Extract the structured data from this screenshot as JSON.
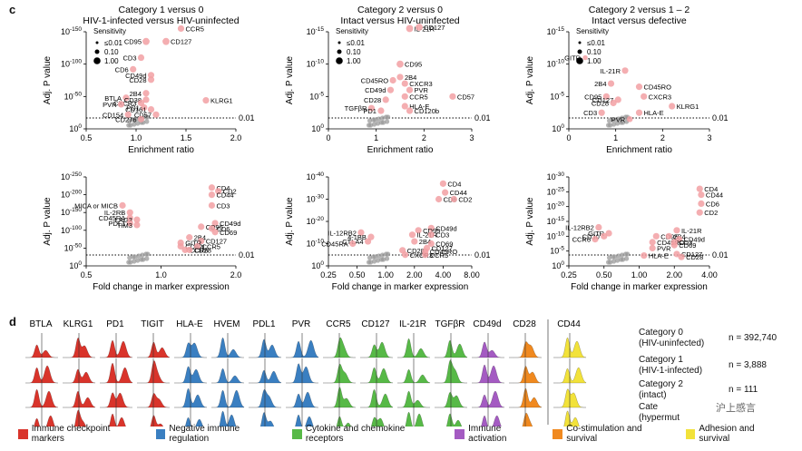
{
  "panel_c": "c",
  "panel_d": "d",
  "chart_data": [
    {
      "type": "scatter",
      "title": "Category 1 versus 0",
      "subtitle": "HIV-1-infected versus HIV-uninfected",
      "xlabel": "Enrichment ratio",
      "ylabel": "Adj. P value",
      "xlim": [
        0.5,
        2.0
      ],
      "xticks": [
        "0.5",
        "1.0",
        "1.5",
        "2.0"
      ],
      "ylim_exp": [
        0,
        150
      ],
      "yticks": [
        "10^0",
        "10^-50",
        "10^-100",
        "10^-150"
      ],
      "threshold_label": "0.01",
      "legend_title": "Sensitivity",
      "legend_items": [
        "≤0.01",
        "0.10",
        "1.00"
      ],
      "points": [
        {
          "label": "CCR5",
          "x": 1.45,
          "y": 155,
          "s": 0.6
        },
        {
          "label": "CD95",
          "x": 1.1,
          "y": 135,
          "s": 0.7
        },
        {
          "label": "CD127",
          "x": 1.3,
          "y": 135,
          "s": 0.7
        },
        {
          "label": "CD3",
          "x": 1.05,
          "y": 110,
          "s": 0.6
        },
        {
          "label": "CD6",
          "x": 0.97,
          "y": 92,
          "s": 0.6
        },
        {
          "label": "CD49d",
          "x": 1.15,
          "y": 83,
          "s": 0.6
        },
        {
          "label": "CD28",
          "x": 1.15,
          "y": 76,
          "s": 0.6
        },
        {
          "label": "2B4",
          "x": 1.1,
          "y": 55,
          "s": 0.6
        },
        {
          "label": "BTLA",
          "x": 0.9,
          "y": 48,
          "s": 0.6
        },
        {
          "label": "CD38",
          "x": 1.1,
          "y": 45,
          "s": 0.6
        },
        {
          "label": "CXCR3",
          "x": 1.05,
          "y": 40,
          "s": 0.6
        },
        {
          "label": "PVR",
          "x": 0.85,
          "y": 38,
          "s": 0.6
        },
        {
          "label": "PD1",
          "x": 1.08,
          "y": 33,
          "s": 0.6
        },
        {
          "label": "CD161",
          "x": 1.15,
          "y": 30,
          "s": 0.6
        },
        {
          "label": "CD154",
          "x": 0.92,
          "y": 22,
          "s": 0.6
        },
        {
          "label": "CD57",
          "x": 1.2,
          "y": 22,
          "s": 0.6
        },
        {
          "label": "CD276",
          "x": 1.05,
          "y": 15,
          "s": 0.6
        },
        {
          "label": "KLRG1",
          "x": 1.7,
          "y": 44,
          "s": 0.6
        }
      ]
    },
    {
      "type": "scatter",
      "title": "Category 2 versus 0",
      "subtitle": "Intact versus HIV-uninfected",
      "xlabel": "Enrichment ratio",
      "ylabel": "Adj. P value",
      "xlim": [
        0,
        3
      ],
      "xticks": [
        "0",
        "1",
        "2",
        "3"
      ],
      "ylim_exp": [
        0,
        15
      ],
      "yticks": [
        "10^0",
        "10^-5",
        "10^-10",
        "10^-15"
      ],
      "threshold_label": "0.01",
      "legend_title": "Sensitivity",
      "legend_items": [
        "≤0.01",
        "0.10",
        "1.00"
      ],
      "points": [
        {
          "label": "IL-21R",
          "x": 1.7,
          "y": 15.5,
          "s": 0.7
        },
        {
          "label": "CD127",
          "x": 1.9,
          "y": 15.7,
          "s": 0.7
        },
        {
          "label": "CD95",
          "x": 1.5,
          "y": 10,
          "s": 0.7
        },
        {
          "label": "2B4",
          "x": 1.5,
          "y": 8,
          "s": 0.6
        },
        {
          "label": "CD45RO",
          "x": 1.35,
          "y": 7.5,
          "s": 0.6
        },
        {
          "label": "CXCR3",
          "x": 1.6,
          "y": 7,
          "s": 0.6
        },
        {
          "label": "CD49d",
          "x": 1.3,
          "y": 6,
          "s": 0.6
        },
        {
          "label": "PVR",
          "x": 1.7,
          "y": 6,
          "s": 0.6
        },
        {
          "label": "CD28",
          "x": 1.2,
          "y": 4.5,
          "s": 0.6
        },
        {
          "label": "CCR5",
          "x": 1.6,
          "y": 5,
          "s": 0.6
        },
        {
          "label": "CD57",
          "x": 2.6,
          "y": 5,
          "s": 0.6
        },
        {
          "label": "TGFβR",
          "x": 0.9,
          "y": 3.2,
          "s": 0.6
        },
        {
          "label": "HLA-E",
          "x": 1.6,
          "y": 3.5,
          "s": 0.6
        },
        {
          "label": "PD1",
          "x": 1.1,
          "y": 2.8,
          "s": 0.6
        },
        {
          "label": "CD120b",
          "x": 1.7,
          "y": 2.8,
          "s": 0.6
        }
      ]
    },
    {
      "type": "scatter",
      "title": "Category 2 versus 1 – 2",
      "subtitle": "Intact versus defective",
      "xlabel": "Enrichment ratio",
      "ylabel": "Adj. P value",
      "xlim": [
        0,
        3
      ],
      "xticks": [
        "0",
        "1",
        "2",
        "3"
      ],
      "ylim_exp": [
        0,
        15
      ],
      "yticks": [
        "10^0",
        "10^-5",
        "10^-10",
        "10^-15"
      ],
      "threshold_label": "0.01",
      "legend_title": "Sensitivity",
      "legend_items": [
        "≤0.01",
        "0.10",
        "1.00"
      ],
      "points": [
        {
          "label": "GITR",
          "x": 0.35,
          "y": 11,
          "s": 0.3
        },
        {
          "label": "IL-21R",
          "x": 1.2,
          "y": 9,
          "s": 0.6
        },
        {
          "label": "2B4",
          "x": 0.9,
          "y": 7,
          "s": 0.6
        },
        {
          "label": "CD45RO",
          "x": 1.5,
          "y": 6.5,
          "s": 0.6
        },
        {
          "label": "CD95",
          "x": 0.8,
          "y": 5,
          "s": 0.6
        },
        {
          "label": "CD127",
          "x": 1.05,
          "y": 4.5,
          "s": 0.6
        },
        {
          "label": "CXCR3",
          "x": 1.6,
          "y": 5,
          "s": 0.6
        },
        {
          "label": "CD28",
          "x": 0.95,
          "y": 4,
          "s": 0.6
        },
        {
          "label": "KLRG1",
          "x": 2.2,
          "y": 3.5,
          "s": 0.6
        },
        {
          "label": "CD3",
          "x": 0.7,
          "y": 2.5,
          "s": 0.6
        },
        {
          "label": "HLA-E",
          "x": 1.5,
          "y": 2.5,
          "s": 0.6
        },
        {
          "label": "PVR",
          "x": 1.3,
          "y": 1.5,
          "s": 0.5
        }
      ]
    },
    {
      "type": "scatter",
      "xlabel": "Fold change in marker expression",
      "ylabel": "Adj. P value",
      "xlim": [
        0.5,
        2.0
      ],
      "xticks": [
        "0.5",
        "1.0",
        "2.0"
      ],
      "ylim_exp": [
        0,
        250
      ],
      "yticks": [
        "10^0",
        "10^-50",
        "10^-100",
        "10^-150",
        "10^-200",
        "10^-250"
      ],
      "threshold_label": "0.01",
      "points": [
        {
          "label": "CD4",
          "x": 1.6,
          "y": 220,
          "s": 0.6
        },
        {
          "label": "CD2",
          "x": 1.7,
          "y": 210,
          "s": 0.6
        },
        {
          "label": "CD44",
          "x": 1.6,
          "y": 200,
          "s": 0.6
        },
        {
          "label": "CD3",
          "x": 1.6,
          "y": 170,
          "s": 0.6
        },
        {
          "label": "CD49d",
          "x": 1.65,
          "y": 120,
          "s": 0.6
        },
        {
          "label": "CD95",
          "x": 1.45,
          "y": 110,
          "s": 0.6
        },
        {
          "label": "CD6",
          "x": 1.6,
          "y": 105,
          "s": 0.6
        },
        {
          "label": "CD69",
          "x": 1.65,
          "y": 95,
          "s": 0.6
        },
        {
          "label": "2B4",
          "x": 1.3,
          "y": 80,
          "s": 0.6
        },
        {
          "label": "CD127",
          "x": 1.45,
          "y": 70,
          "s": 0.6
        },
        {
          "label": "GITR",
          "x": 1.2,
          "y": 65,
          "s": 0.6
        },
        {
          "label": "CD62L",
          "x": 1.2,
          "y": 55,
          "s": 0.6
        },
        {
          "label": "CCR5",
          "x": 1.4,
          "y": 55,
          "s": 0.6
        },
        {
          "label": "CCR6",
          "x": 1.25,
          "y": 45,
          "s": 0.6
        },
        {
          "label": "CD28",
          "x": 1.3,
          "y": 45,
          "s": 0.6
        },
        {
          "label": "MICA or MICB",
          "x": 0.7,
          "y": 170,
          "s": 0.6
        },
        {
          "label": "IL-2RB",
          "x": 0.75,
          "y": 150,
          "s": 0.6
        },
        {
          "label": "CD45RA",
          "x": 0.75,
          "y": 135,
          "s": 0.6
        },
        {
          "label": "LAG3",
          "x": 0.8,
          "y": 130,
          "s": 0.6
        },
        {
          "label": "PDL1",
          "x": 0.75,
          "y": 120,
          "s": 0.6
        },
        {
          "label": "TIM3",
          "x": 0.8,
          "y": 115,
          "s": 0.6
        }
      ]
    },
    {
      "type": "scatter",
      "xlabel": "Fold change in marker expression",
      "ylabel": "Adj. P value",
      "xlim": [
        0.25,
        8.0
      ],
      "xticks": [
        "0.25",
        "0.50",
        "1.00",
        "2.00",
        "4.00",
        "8.00"
      ],
      "ylim_exp": [
        0,
        40
      ],
      "yticks": [
        "10^0",
        "10^-10",
        "10^-20",
        "10^-30",
        "10^-40"
      ],
      "threshold_label": "0.01",
      "points": [
        {
          "label": "CD4",
          "x": 4.0,
          "y": 37,
          "s": 0.6
        },
        {
          "label": "CD44",
          "x": 4.2,
          "y": 33,
          "s": 0.6
        },
        {
          "label": "CD6",
          "x": 3.6,
          "y": 30,
          "s": 0.6
        },
        {
          "label": "CD2",
          "x": 5.2,
          "y": 30,
          "s": 0.6
        },
        {
          "label": "CD49d",
          "x": 3.0,
          "y": 17,
          "s": 0.6
        },
        {
          "label": "CD95",
          "x": 2.2,
          "y": 16,
          "s": 0.6
        },
        {
          "label": "IL-21R",
          "x": 1.9,
          "y": 14,
          "s": 0.6
        },
        {
          "label": "CD3",
          "x": 3.0,
          "y": 14,
          "s": 0.6
        },
        {
          "label": "2B4",
          "x": 2.0,
          "y": 11,
          "s": 0.6
        },
        {
          "label": "CD69",
          "x": 3.0,
          "y": 10,
          "s": 0.6
        },
        {
          "label": "CD127",
          "x": 2.7,
          "y": 8,
          "s": 0.6
        },
        {
          "label": "CD28",
          "x": 1.5,
          "y": 7,
          "s": 0.6
        },
        {
          "label": "CD45RO",
          "x": 2.6,
          "y": 6.5,
          "s": 0.6
        },
        {
          "label": "CXCR3",
          "x": 1.6,
          "y": 5,
          "s": 0.6
        },
        {
          "label": "CCR5",
          "x": 2.6,
          "y": 5,
          "s": 0.6
        },
        {
          "label": "IL-12RB2",
          "x": 0.55,
          "y": 15,
          "s": 0.6
        },
        {
          "label": "4-1BB",
          "x": 0.7,
          "y": 13,
          "s": 0.6
        },
        {
          "label": "CTLA4",
          "x": 0.65,
          "y": 11,
          "s": 0.6
        },
        {
          "label": "CD45RA",
          "x": 0.45,
          "y": 10,
          "s": 0.6
        }
      ]
    },
    {
      "type": "scatter",
      "xlabel": "Fold change in marker expression",
      "ylabel": "Adj. P value",
      "xlim": [
        0.25,
        4.0
      ],
      "xticks": [
        "0.25",
        "0.50",
        "1.00",
        "2.00",
        "4.00"
      ],
      "ylim_exp": [
        0,
        30
      ],
      "yticks": [
        "10^0",
        "10^-5",
        "10^-10",
        "10^-15",
        "10^-20",
        "10^-25",
        "10^-30"
      ],
      "threshold_label": "0.01",
      "points": [
        {
          "label": "CD4",
          "x": 3.3,
          "y": 26,
          "s": 0.6
        },
        {
          "label": "CD44",
          "x": 3.4,
          "y": 24,
          "s": 0.6
        },
        {
          "label": "CD6",
          "x": 3.4,
          "y": 21,
          "s": 0.6
        },
        {
          "label": "CD2",
          "x": 3.3,
          "y": 18,
          "s": 0.6
        },
        {
          "label": "IL-12RB2",
          "x": 0.45,
          "y": 13,
          "s": 0.6
        },
        {
          "label": "GITR",
          "x": 0.55,
          "y": 11,
          "s": 0.6
        },
        {
          "label": "CD30",
          "x": 0.5,
          "y": 10,
          "s": 0.6
        },
        {
          "label": "CCR6",
          "x": 0.42,
          "y": 9,
          "s": 0.6
        },
        {
          "label": "IL-21R",
          "x": 2.1,
          "y": 12,
          "s": 0.6
        },
        {
          "label": "CD95",
          "x": 1.4,
          "y": 10,
          "s": 0.6
        },
        {
          "label": "2B4",
          "x": 1.8,
          "y": 10,
          "s": 0.6
        },
        {
          "label": "CD49d",
          "x": 2.2,
          "y": 9,
          "s": 0.6
        },
        {
          "label": "CD45RO",
          "x": 1.3,
          "y": 8,
          "s": 0.6
        },
        {
          "label": "CD3",
          "x": 2.0,
          "y": 8,
          "s": 0.6
        },
        {
          "label": "CD69",
          "x": 2.0,
          "y": 7,
          "s": 0.6
        },
        {
          "label": "PVR",
          "x": 1.3,
          "y": 6,
          "s": 0.6
        },
        {
          "label": "CD127",
          "x": 2.1,
          "y": 4,
          "s": 0.6
        },
        {
          "label": "HLA-E",
          "x": 1.1,
          "y": 3.5,
          "s": 0.6
        },
        {
          "label": "CD28",
          "x": 2.3,
          "y": 3,
          "s": 0.6
        }
      ]
    }
  ],
  "ridge": {
    "markers": [
      {
        "name": "BTLA",
        "cat": 0
      },
      {
        "name": "KLRG1",
        "cat": 0
      },
      {
        "name": "PD1",
        "cat": 0
      },
      {
        "name": "TIGIT",
        "cat": 0
      },
      {
        "name": "HLA-E",
        "cat": 1
      },
      {
        "name": "HVEM",
        "cat": 1
      },
      {
        "name": "PDL1",
        "cat": 1
      },
      {
        "name": "PVR",
        "cat": 1
      },
      {
        "name": "CCR5",
        "cat": 2
      },
      {
        "name": "CD127",
        "cat": 2
      },
      {
        "name": "IL-21R",
        "cat": 2
      },
      {
        "name": "TGFβR",
        "cat": 2
      },
      {
        "name": "CD49d",
        "cat": 3
      },
      {
        "name": "CD28",
        "cat": 4
      },
      {
        "name": "CD44",
        "cat": 5
      }
    ],
    "rows": [
      {
        "line1": "Category 0",
        "line2": "(HIV-uninfected)",
        "n": "n = 392,740"
      },
      {
        "line1": "Category 1",
        "line2": "(HIV-1-infected)",
        "n": "n = 3,888"
      },
      {
        "line1": "Category 2",
        "line2": "(intact)",
        "n": "n = 111"
      },
      {
        "line1": "Cate",
        "line2": "(hypermut",
        "n": ""
      }
    ]
  },
  "legend": [
    {
      "label": "Immune checkpoint markers",
      "color": "#d9342b"
    },
    {
      "label": "Negative immune regulation",
      "color": "#3a7fc1"
    },
    {
      "label": "Cytokine and chemokine receptors",
      "color": "#57b947"
    },
    {
      "label": "Immune activation",
      "color": "#a45bc2"
    },
    {
      "label": "Co-stimulation and survival",
      "color": "#f0891f"
    },
    {
      "label": "Adhesion and survival",
      "color": "#f2e23a"
    }
  ],
  "watermark": "沪上感言"
}
